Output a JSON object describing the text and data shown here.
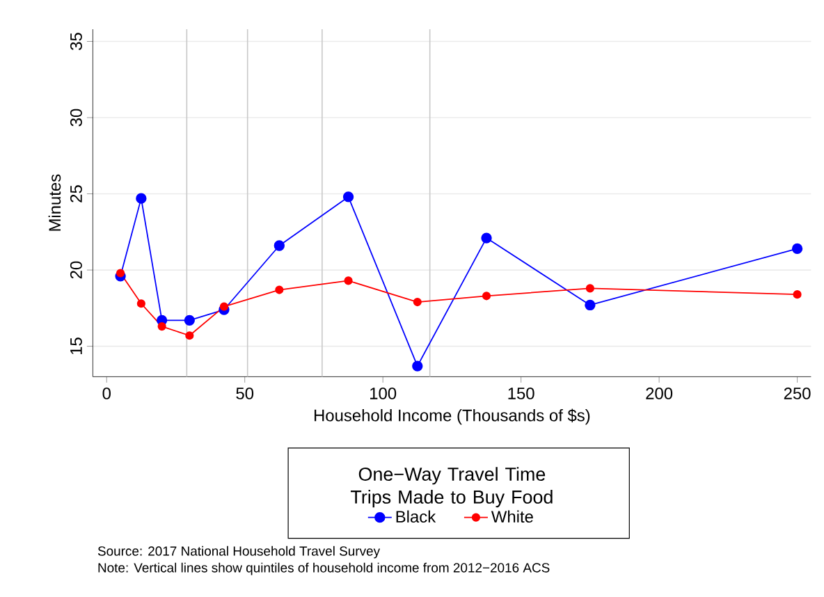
{
  "chart_data": {
    "type": "line",
    "xlabel": "Household Income (Thousands of $s)",
    "ylabel": "Minutes",
    "legend_title": "One−Way Travel Time Trips Made to Buy Food",
    "x": [
      5,
      12.5,
      20,
      30,
      42.5,
      62.5,
      87.5,
      112.5,
      137.5,
      175,
      250
    ],
    "series": [
      {
        "name": "Black",
        "color": "#0000ff",
        "values": [
          19.6,
          24.7,
          16.7,
          16.7,
          17.4,
          21.6,
          24.8,
          13.7,
          22.1,
          17.7,
          21.4
        ]
      },
      {
        "name": "White",
        "color": "#ff0000",
        "values": [
          19.8,
          17.8,
          16.3,
          15.7,
          17.6,
          18.7,
          19.3,
          17.9,
          18.3,
          18.8,
          18.4
        ]
      }
    ],
    "xlim": [
      -5,
      255
    ],
    "ylim": [
      13,
      35.8
    ],
    "xticks": [
      0,
      50,
      100,
      150,
      200,
      250
    ],
    "yticks": [
      15,
      20,
      25,
      30,
      35
    ],
    "ref_lines": [
      {
        "axis": "x",
        "value": 29,
        "color": "#c8c8c8"
      },
      {
        "axis": "x",
        "value": 51,
        "color": "#c8c8c8"
      },
      {
        "axis": "x",
        "value": 78,
        "color": "#c8c8c8"
      },
      {
        "axis": "x",
        "value": 117,
        "color": "#c8c8c8"
      }
    ],
    "grid": "y",
    "legend": "bottom",
    "marker": "circle",
    "line_style": "solid",
    "annotations": [
      "Source:  2017 National Household Travel Survey",
      "Note:  Vertical lines show quintiles of household income from 2012−2016 ACS"
    ]
  }
}
